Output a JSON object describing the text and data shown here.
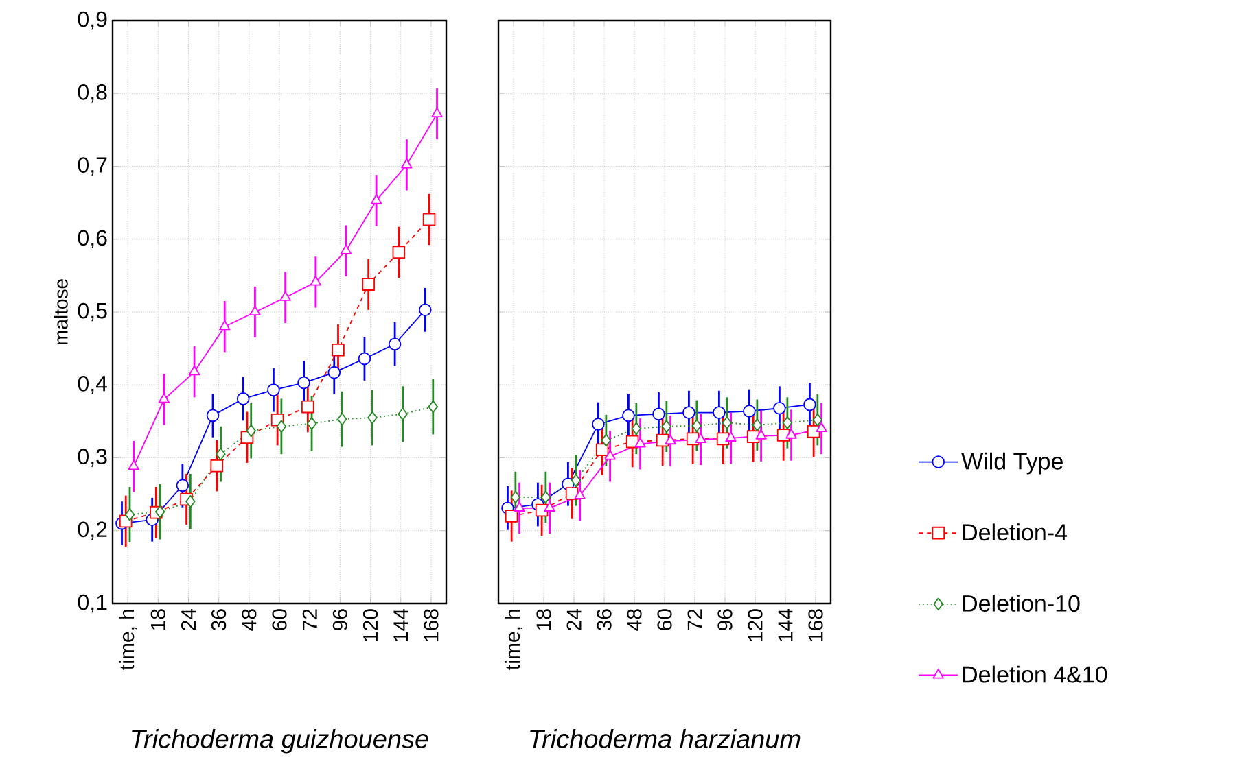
{
  "chart_data": [
    {
      "type": "line",
      "xlabel": "Trichoderma guizhouense",
      "ylabel": "maltose",
      "categories": [
        "time, h",
        "18",
        "24",
        "36",
        "48",
        "60",
        "72",
        "96",
        "120",
        "144",
        "168"
      ],
      "ylim": [
        0.1,
        0.9
      ],
      "yticks": [
        {
          "value": 0.1,
          "label": "0,1"
        },
        {
          "value": 0.2,
          "label": "0,2"
        },
        {
          "value": 0.3,
          "label": "0,3"
        },
        {
          "value": 0.4,
          "label": "0,4"
        },
        {
          "value": 0.5,
          "label": "0,5"
        },
        {
          "value": 0.6,
          "label": "0,6"
        },
        {
          "value": 0.7,
          "label": "0,7"
        },
        {
          "value": 0.8,
          "label": "0,8"
        },
        {
          "value": 0.9,
          "label": "0,9"
        }
      ],
      "grid": true,
      "series": [
        {
          "color": "#0000ff",
          "marker": "circle",
          "line_style": "solid",
          "values": [
            0.21,
            0.215,
            0.262,
            0.358,
            0.381,
            0.393,
            0.403,
            0.417,
            0.436,
            0.456,
            0.503
          ],
          "errors": [
            0.03,
            0.03,
            0.03,
            0.03,
            0.03,
            0.03,
            0.03,
            0.03,
            0.03,
            0.03,
            0.03
          ]
        },
        {
          "color": "#ff0000",
          "marker": "square",
          "line_style": "dashed",
          "values": [
            0.213,
            0.225,
            0.243,
            0.289,
            0.328,
            0.352,
            0.37,
            0.448,
            0.538,
            0.582,
            0.627
          ],
          "errors": [
            0.035,
            0.035,
            0.035,
            0.035,
            0.035,
            0.035,
            0.035,
            0.035,
            0.035,
            0.035,
            0.035
          ]
        },
        {
          "color": "#228b22",
          "marker": "diamond",
          "line_style": "dotted",
          "values": [
            0.222,
            0.226,
            0.24,
            0.305,
            0.337,
            0.343,
            0.347,
            0.353,
            0.355,
            0.36,
            0.37
          ],
          "errors": [
            0.038,
            0.038,
            0.038,
            0.038,
            0.038,
            0.038,
            0.038,
            0.038,
            0.038,
            0.038,
            0.038
          ]
        },
        {
          "color": "#ff00ff",
          "marker": "triangle",
          "line_style": "solid",
          "values": [
            0.288,
            0.38,
            0.418,
            0.48,
            0.5,
            0.52,
            0.541,
            0.584,
            0.653,
            0.702,
            0.772
          ],
          "errors": [
            0.035,
            0.035,
            0.035,
            0.035,
            0.035,
            0.035,
            0.035,
            0.035,
            0.035,
            0.035,
            0.035
          ]
        }
      ]
    },
    {
      "type": "line",
      "xlabel": "Trichoderma harzianum",
      "categories": [
        "time, h",
        "18",
        "24",
        "36",
        "48",
        "60",
        "72",
        "96",
        "120",
        "144",
        "168"
      ],
      "ylim": [
        0.1,
        0.9
      ],
      "yticks": [
        0.1,
        0.2,
        0.3,
        0.4,
        0.5,
        0.6,
        0.7,
        0.8,
        0.9
      ],
      "grid": true,
      "legend": "right",
      "tick_labels": "x",
      "series": [
        {
          "name": "Wild Type",
          "color": "#0000ff",
          "marker": "circle",
          "line_style": "solid",
          "values": [
            0.231,
            0.236,
            0.264,
            0.346,
            0.358,
            0.36,
            0.362,
            0.362,
            0.364,
            0.368,
            0.373
          ],
          "errors": [
            0.03,
            0.03,
            0.03,
            0.03,
            0.03,
            0.03,
            0.03,
            0.03,
            0.03,
            0.03,
            0.03
          ]
        },
        {
          "name": "Deletion-4",
          "color": "#ff0000",
          "marker": "square",
          "line_style": "dashed",
          "values": [
            0.22,
            0.228,
            0.251,
            0.311,
            0.322,
            0.324,
            0.326,
            0.326,
            0.329,
            0.331,
            0.336
          ],
          "errors": [
            0.035,
            0.035,
            0.035,
            0.035,
            0.035,
            0.035,
            0.035,
            0.035,
            0.035,
            0.035,
            0.035
          ]
        },
        {
          "name": "Deletion-10",
          "color": "#228b22",
          "marker": "diamond",
          "line_style": "dotted",
          "values": [
            0.246,
            0.246,
            0.269,
            0.324,
            0.34,
            0.343,
            0.344,
            0.348,
            0.345,
            0.348,
            0.352
          ],
          "errors": [
            0.035,
            0.035,
            0.035,
            0.035,
            0.035,
            0.035,
            0.035,
            0.035,
            0.035,
            0.035,
            0.035
          ]
        },
        {
          "name": "Deletion 4&10",
          "color": "#ff00ff",
          "marker": "triangle",
          "line_style": "solid",
          "values": [
            0.231,
            0.231,
            0.248,
            0.302,
            0.319,
            0.323,
            0.325,
            0.327,
            0.33,
            0.331,
            0.34
          ],
          "errors": [
            0.035,
            0.035,
            0.035,
            0.035,
            0.035,
            0.035,
            0.035,
            0.035,
            0.035,
            0.035,
            0.035
          ]
        }
      ]
    }
  ]
}
